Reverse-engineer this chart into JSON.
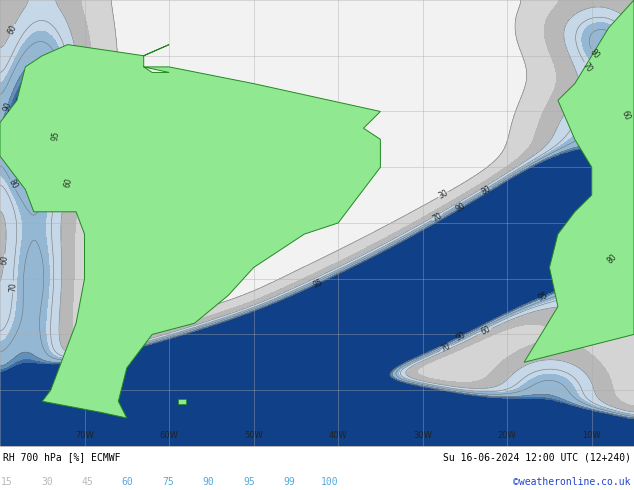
{
  "title_left": "RH 700 hPa [%] ECMWF",
  "title_right": "Su 16-06-2024 12:00 UTC (12+240)",
  "colorbar_values": [
    15,
    30,
    45,
    60,
    75,
    90,
    95,
    99,
    100
  ],
  "colorbar_label_colors_gray": [
    "#b0b0b0",
    "#b0b0b0",
    "#b0b0b0"
  ],
  "colorbar_label_colors_blue": [
    "#55aadd",
    "#55aadd",
    "#55aadd",
    "#55aadd",
    "#55aadd",
    "#55aadd"
  ],
  "rh_colors": [
    "#ffffff",
    "#f0f0f0",
    "#d8d8d8",
    "#c0c0c0",
    "#a8a8a8",
    "#c8dce8",
    "#a0c4dc",
    "#78acd0",
    "#5090c0",
    "#3070b0",
    "#1850a0"
  ],
  "bg_color": "#ffffff",
  "land_green": "#90e890",
  "land_green_dark": "#70c870",
  "border_color": "#228822",
  "grid_color": "#aaaaaa",
  "contour_color": "#707070",
  "label_color": "#111111",
  "credit": "©weatheronline.co.uk",
  "credit_color": "#2244cc",
  "figsize": [
    6.34,
    4.9
  ],
  "dpi": 100,
  "lon_min": -80,
  "lon_max": -5,
  "lat_min": -60,
  "lat_max": 20
}
